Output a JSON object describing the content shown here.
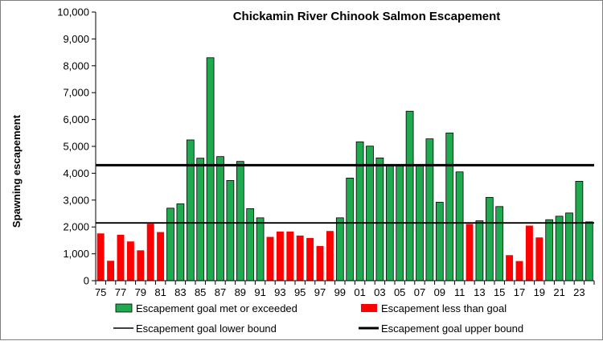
{
  "chart_data": {
    "type": "bar",
    "title": "Chickamin River Chinook Salmon Escapement",
    "ylabel": "Spawning escapement",
    "xlabel": "",
    "ylim": [
      0,
      10000
    ],
    "yticks": [
      "0",
      "1,000",
      "2,000",
      "3,000",
      "4,000",
      "5,000",
      "6,000",
      "7,000",
      "8,000",
      "9,000",
      "10,000"
    ],
    "categories": [
      "75",
      "76",
      "77",
      "78",
      "79",
      "80",
      "81",
      "82",
      "83",
      "84",
      "85",
      "86",
      "87",
      "88",
      "89",
      "90",
      "91",
      "92",
      "93",
      "94",
      "95",
      "96",
      "97",
      "98",
      "99",
      "00",
      "01",
      "02",
      "03",
      "04",
      "05",
      "06",
      "07",
      "08",
      "09",
      "10",
      "11",
      "12",
      "13",
      "14",
      "15",
      "16",
      "17",
      "18",
      "19",
      "20",
      "21",
      "22",
      "23",
      "24"
    ],
    "x_tick_labels": [
      "75",
      "77",
      "79",
      "81",
      "83",
      "85",
      "87",
      "89",
      "91",
      "93",
      "95",
      "97",
      "99",
      "01",
      "03",
      "05",
      "07",
      "09",
      "11",
      "13",
      "15",
      "17",
      "19",
      "21",
      "23"
    ],
    "values": [
      1760,
      740,
      1710,
      1460,
      1130,
      2120,
      1810,
      2700,
      2860,
      5240,
      4560,
      8300,
      4620,
      3730,
      4440,
      2680,
      2340,
      1630,
      1830,
      1830,
      1680,
      1590,
      1290,
      1850,
      2340,
      3820,
      5170,
      5010,
      4570,
      4300,
      4300,
      6310,
      4300,
      5280,
      2920,
      5500,
      4050,
      2110,
      2230,
      3100,
      2760,
      950,
      730,
      2050,
      1610,
      2270,
      2400,
      2520,
      3700,
      2190
    ],
    "met": [
      false,
      false,
      false,
      false,
      false,
      false,
      false,
      true,
      true,
      true,
      true,
      true,
      true,
      true,
      true,
      true,
      true,
      false,
      false,
      false,
      false,
      false,
      false,
      false,
      true,
      true,
      true,
      true,
      true,
      true,
      true,
      true,
      true,
      true,
      true,
      true,
      true,
      false,
      true,
      true,
      true,
      false,
      false,
      false,
      false,
      true,
      true,
      true,
      true,
      true
    ],
    "goal_lower": 2150,
    "goal_upper": 4300,
    "colors": {
      "met": "#1faa4f",
      "below": "#ff0000",
      "bar_outline": "#000000",
      "goal_line": "#000000"
    },
    "legend": {
      "met_label": "Escapement goal met or exceeded",
      "below_label": "Escapement less than goal",
      "lower_label": "Escapement goal lower bound",
      "upper_label": "Escapement goal upper bound",
      "placement": "bottom"
    },
    "grid": false
  }
}
